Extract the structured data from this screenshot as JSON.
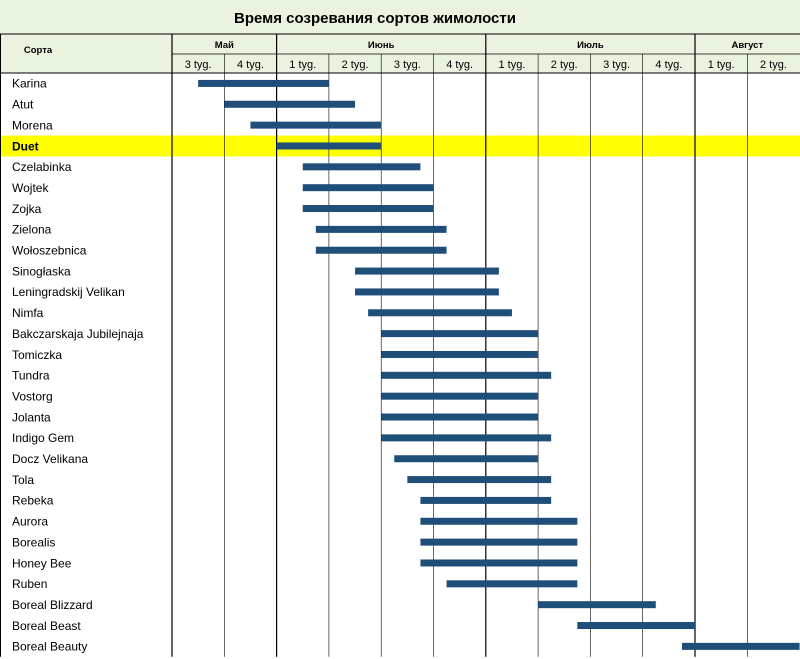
{
  "chart_data": {
    "type": "gantt",
    "title": "Время созревания сортов жимолости",
    "row_header": "Сорта",
    "months": [
      {
        "name": "Май",
        "weeks": [
          "3 tyg.",
          "4 tyg."
        ]
      },
      {
        "name": "Июнь",
        "weeks": [
          "1 tyg.",
          "2 tyg.",
          "3 tyg.",
          "4 tyg."
        ]
      },
      {
        "name": "Июль",
        "weeks": [
          "1 tyg.",
          "2 tyg.",
          "3 tyg.",
          "4 tyg."
        ]
      },
      {
        "name": "Август",
        "weeks": [
          "1 tyg.",
          "2 tyg."
        ]
      }
    ],
    "highlight_color": "#ffff00",
    "bar_color": "#1f4e79",
    "highlighted": "Duet",
    "series": [
      {
        "name": "Karina",
        "start": 0.5,
        "end": 3.0
      },
      {
        "name": "Atut",
        "start": 1.0,
        "end": 3.5
      },
      {
        "name": "Morena",
        "start": 1.5,
        "end": 4.0
      },
      {
        "name": "Duet",
        "start": 2.0,
        "end": 4.0
      },
      {
        "name": "Czelabinka",
        "start": 2.5,
        "end": 4.75
      },
      {
        "name": "Wojtek",
        "start": 2.5,
        "end": 5.0
      },
      {
        "name": "Zojka",
        "start": 2.5,
        "end": 5.0
      },
      {
        "name": "Zielona",
        "start": 2.75,
        "end": 5.25
      },
      {
        "name": "Wołoszebnica",
        "start": 2.75,
        "end": 5.25
      },
      {
        "name": "Sinogłaska",
        "start": 3.5,
        "end": 6.25
      },
      {
        "name": "Leningradskij Velikan",
        "start": 3.5,
        "end": 6.25
      },
      {
        "name": "Nimfa",
        "start": 3.75,
        "end": 6.5
      },
      {
        "name": "Bakczarskaja Jubilejnaja",
        "start": 4.0,
        "end": 7.0
      },
      {
        "name": "Tomiczka",
        "start": 4.0,
        "end": 7.0
      },
      {
        "name": "Tundra",
        "start": 4.0,
        "end": 7.25
      },
      {
        "name": "Vostorg",
        "start": 4.0,
        "end": 7.0
      },
      {
        "name": "Jolanta",
        "start": 4.0,
        "end": 7.0
      },
      {
        "name": "Indigo Gem",
        "start": 4.0,
        "end": 7.25
      },
      {
        "name": "Docz Velikana",
        "start": 4.25,
        "end": 7.0
      },
      {
        "name": "Tola",
        "start": 4.5,
        "end": 7.25
      },
      {
        "name": "Rebeka",
        "start": 4.75,
        "end": 7.25
      },
      {
        "name": "Aurora",
        "start": 4.75,
        "end": 7.75
      },
      {
        "name": "Borealis",
        "start": 4.75,
        "end": 7.75
      },
      {
        "name": "Honey Bee",
        "start": 4.75,
        "end": 7.75
      },
      {
        "name": "Ruben",
        "start": 5.25,
        "end": 7.75
      },
      {
        "name": "Boreal Blizzard",
        "start": 7.0,
        "end": 9.25
      },
      {
        "name": "Boreal Beast",
        "start": 7.75,
        "end": 10.0
      },
      {
        "name": "Boreal Beauty",
        "start": 9.75,
        "end": 12.0
      }
    ]
  }
}
